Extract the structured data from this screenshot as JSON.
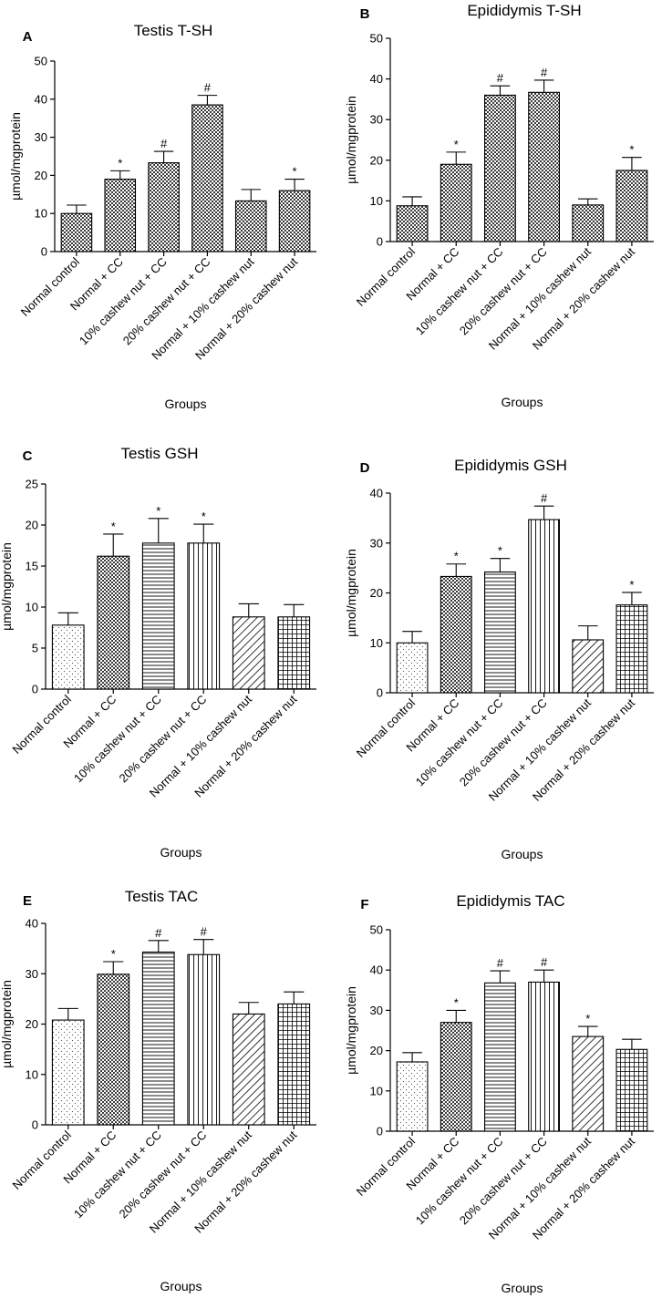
{
  "chart_data": [
    {
      "panel": "A",
      "type": "bar",
      "title": "Testis T-SH",
      "xlabel": "Groups",
      "ylabel": "µmol/mgprotein",
      "ylim": [
        0,
        50
      ],
      "yticks": [
        0,
        10,
        20,
        30,
        40,
        50
      ],
      "categories": [
        "Normal control",
        "Normal + CC",
        "10% cashew nut + CC",
        "20% cashew nut + CC",
        "Normal + 10% cashew nut",
        "Normal + 20% cashew nut"
      ],
      "values": [
        10,
        19,
        23.3,
        38.5,
        13.3,
        16
      ],
      "errors": [
        2.2,
        2.2,
        3.0,
        2.5,
        3.0,
        3.0
      ],
      "significance": [
        "",
        "*",
        "#",
        "#",
        "",
        "*"
      ],
      "patterns": [
        "checker",
        "checker",
        "checker",
        "checker",
        "checker",
        "checker"
      ]
    },
    {
      "panel": "B",
      "type": "bar",
      "title": "Epididymis T-SH",
      "xlabel": "Groups",
      "ylabel": "µmol/mgprotein",
      "ylim": [
        0,
        50
      ],
      "yticks": [
        0,
        10,
        20,
        30,
        40,
        50
      ],
      "categories": [
        "Normal control",
        "Normal + CC",
        "10% cashew nut + CC",
        "20% cashew nut + CC",
        "Normal + 10% cashew nut",
        "Normal + 20% cashew nut"
      ],
      "values": [
        8.8,
        19,
        36,
        36.7,
        9,
        17.5
      ],
      "errors": [
        2.2,
        3.0,
        2.3,
        3.0,
        1.5,
        3.2
      ],
      "significance": [
        "",
        "*",
        "#",
        "#",
        "",
        "*"
      ],
      "patterns": [
        "checker",
        "checker",
        "checker",
        "checker",
        "checker",
        "checker"
      ]
    },
    {
      "panel": "C",
      "type": "bar",
      "title": "Testis GSH",
      "xlabel": "Groups",
      "ylabel": "µmol/mgprotein",
      "ylim": [
        0,
        25
      ],
      "yticks": [
        0,
        5,
        10,
        15,
        20,
        25
      ],
      "categories": [
        "Normal control",
        "Normal + CC",
        "10% cashew nut + CC",
        "20% cashew nut + CC",
        "Normal + 10% cashew nut",
        "Normal + 20% cashew nut"
      ],
      "values": [
        7.8,
        16.2,
        17.8,
        17.8,
        8.8,
        8.8
      ],
      "errors": [
        1.5,
        2.7,
        3.0,
        2.3,
        1.6,
        1.5
      ],
      "significance": [
        "",
        "*",
        "*",
        "*",
        "",
        ""
      ],
      "patterns": [
        "dots",
        "checker",
        "hlines",
        "vlines",
        "diag",
        "grid"
      ]
    },
    {
      "panel": "D",
      "type": "bar",
      "title": "Epididymis GSH",
      "xlabel": "Groups",
      "ylabel": "µmol/mgprotein",
      "ylim": [
        0,
        40
      ],
      "yticks": [
        0,
        10,
        20,
        30,
        40
      ],
      "categories": [
        "Normal control",
        "Normal + CC",
        "10% cashew nut + CC",
        "20% cashew nut + CC",
        "Normal + 10% cashew nut",
        "Normal + 20% cashew nut"
      ],
      "values": [
        10,
        23.3,
        24.2,
        34.7,
        10.6,
        17.6
      ],
      "errors": [
        2.3,
        2.5,
        2.7,
        2.7,
        2.8,
        2.5
      ],
      "significance": [
        "",
        "*",
        "*",
        "#",
        "",
        "*"
      ],
      "patterns": [
        "dots",
        "checker",
        "hlines",
        "vlines",
        "diag",
        "grid"
      ]
    },
    {
      "panel": "E",
      "type": "bar",
      "title": "Testis TAC",
      "xlabel": "Groups",
      "ylabel": "µmol/mgprotein",
      "ylim": [
        0,
        40
      ],
      "yticks": [
        0,
        10,
        20,
        30,
        40
      ],
      "categories": [
        "Normal control",
        "Normal + CC",
        "10% cashew nut + CC",
        "20% cashew nut + CC",
        "Normal + 10% cashew nut",
        "Normal + 20% cashew nut"
      ],
      "values": [
        20.8,
        29.9,
        34.3,
        33.8,
        22,
        24
      ],
      "errors": [
        2.3,
        2.5,
        2.3,
        3.0,
        2.3,
        2.4
      ],
      "significance": [
        "",
        "*",
        "#",
        "#",
        "",
        ""
      ],
      "patterns": [
        "dots",
        "checker",
        "hlines",
        "vlines",
        "diag",
        "grid"
      ]
    },
    {
      "panel": "F",
      "type": "bar",
      "title": "Epididymis TAC",
      "xlabel": "Groups",
      "ylabel": "µmol/mgprotein",
      "ylim": [
        0,
        50
      ],
      "yticks": [
        0,
        10,
        20,
        30,
        40,
        50
      ],
      "categories": [
        "Normal control",
        "Normal + CC",
        "10% cashew nut + CC",
        "20% cashew nut + CC",
        "Normal + 10% cashew nut",
        "Normal + 20% cashew nut"
      ],
      "values": [
        17.2,
        27,
        36.8,
        37,
        23.5,
        20.3
      ],
      "errors": [
        2.3,
        3.0,
        3.0,
        3.0,
        2.5,
        2.5
      ],
      "significance": [
        "",
        "*",
        "#",
        "#",
        "*",
        ""
      ],
      "patterns": [
        "dots",
        "checker",
        "hlines",
        "vlines",
        "diag",
        "grid"
      ]
    }
  ]
}
